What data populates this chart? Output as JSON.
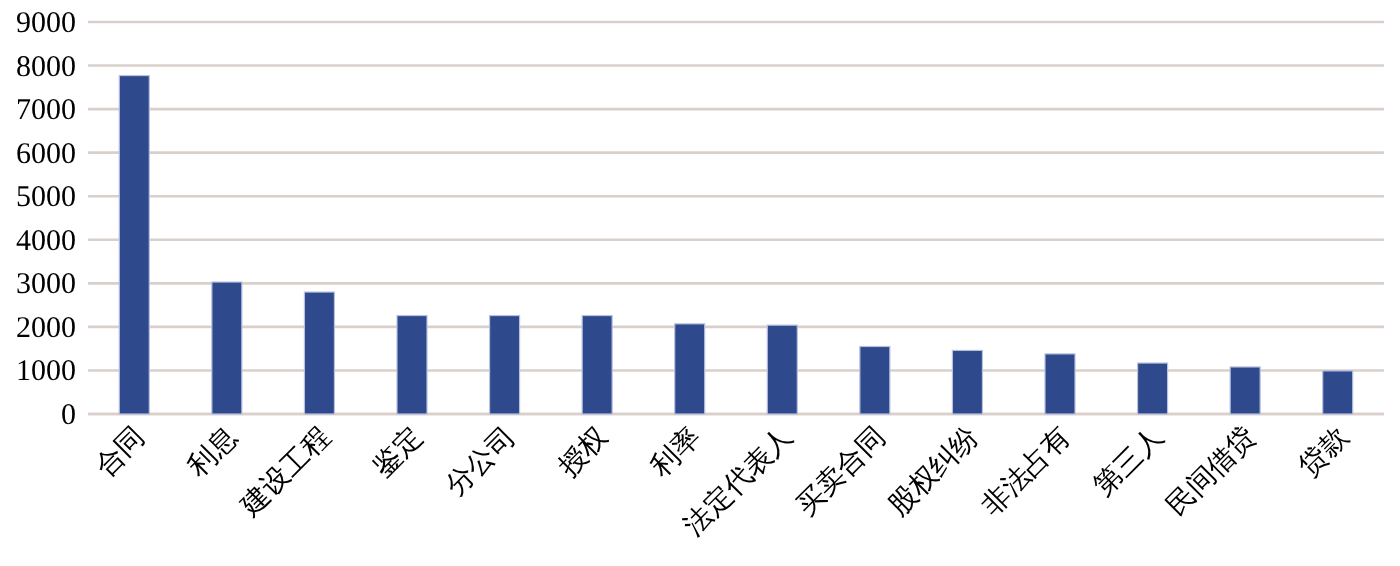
{
  "chart_data": {
    "type": "bar",
    "categories": [
      "合同",
      "利息",
      "建设工程",
      "鉴定",
      "分公司",
      "授权",
      "利率",
      "法定代表人",
      "买卖合同",
      "股权纠纷",
      "非法占有",
      "第三人",
      "民间借贷",
      "贷款"
    ],
    "values": [
      7770,
      3030,
      2800,
      2260,
      2260,
      2260,
      2070,
      2040,
      1550,
      1460,
      1380,
      1170,
      1080,
      990
    ],
    "color": "#2e4a8c",
    "ylim": [
      0,
      9000
    ],
    "yticks": [
      0,
      1000,
      2000,
      3000,
      4000,
      5000,
      6000,
      7000,
      8000,
      9000
    ],
    "grid": "y"
  }
}
